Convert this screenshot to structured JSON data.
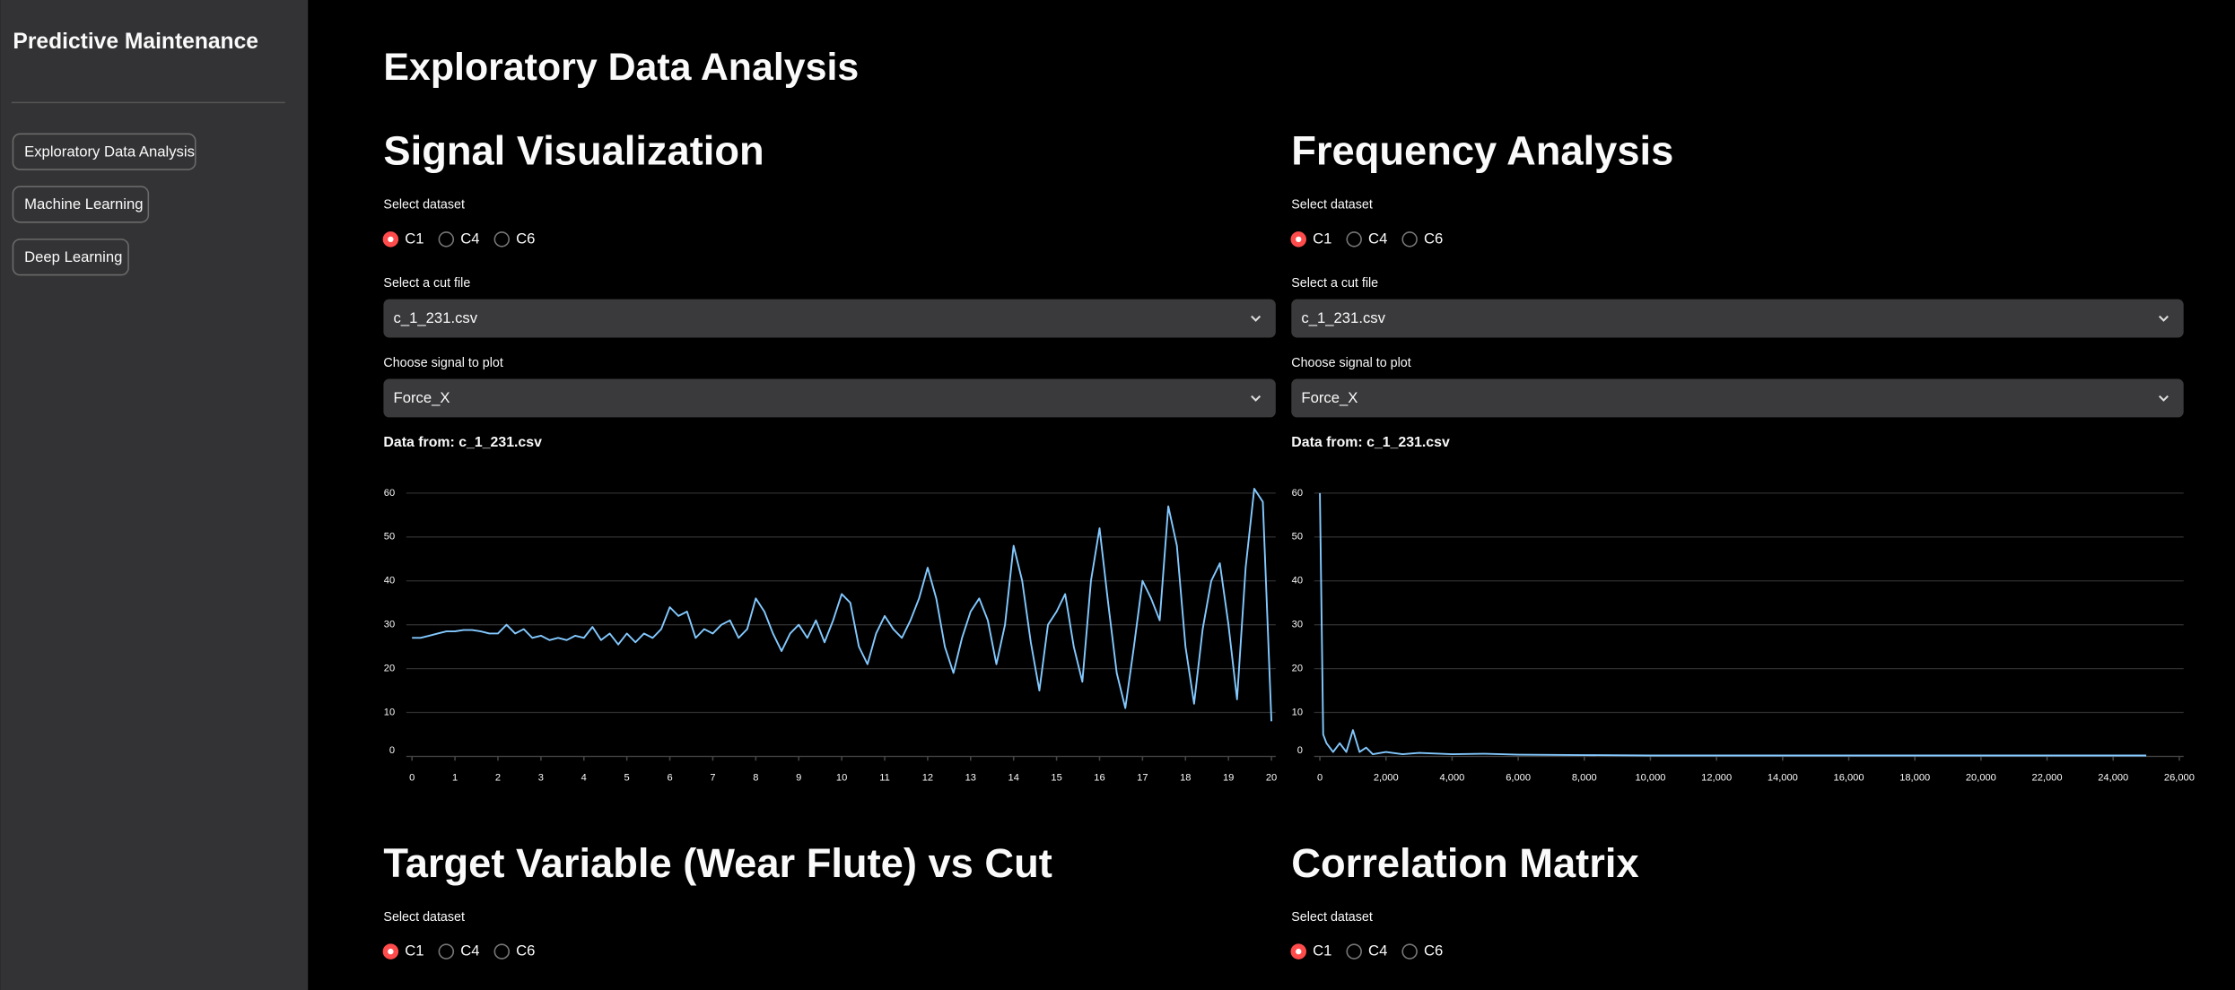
{
  "sidebar": {
    "title": "Predictive Maintenance",
    "nav": [
      "Exploratory Data Analysis",
      "Machine Learning",
      "Deep Learning"
    ]
  },
  "header": {
    "title": "Exploratory Data Analysis"
  },
  "sections": [
    {
      "title": "Signal Visualization",
      "dataset_label": "Select dataset",
      "options": [
        "C1",
        "C4",
        "C6"
      ],
      "selected": 0,
      "cut_label": "Select a cut file",
      "cut_value": "c_1_231.csv",
      "signal_label": "Choose signal to plot",
      "signal_value": "Force_X",
      "data_from": "Data from: c_1_231.csv",
      "chart": {
        "type": "line",
        "color": "#83c9ff",
        "grid": true,
        "xlim": [
          0,
          20
        ],
        "ylim": [
          0,
          62
        ],
        "xticks": [
          0,
          1,
          2,
          3,
          4,
          5,
          6,
          7,
          8,
          9,
          10,
          11,
          12,
          13,
          14,
          15,
          16,
          17,
          18,
          19,
          20
        ],
        "yticks": [
          0,
          10,
          20,
          30,
          40,
          50,
          60
        ],
        "x": [
          0,
          0.2,
          0.4,
          0.6,
          0.8,
          1,
          1.2,
          1.4,
          1.6,
          1.8,
          2,
          2.2,
          2.4,
          2.6,
          2.8,
          3,
          3.2,
          3.4,
          3.6,
          3.8,
          4,
          4.2,
          4.4,
          4.6,
          4.8,
          5,
          5.2,
          5.4,
          5.6,
          5.8,
          6,
          6.2,
          6.4,
          6.6,
          6.8,
          7,
          7.2,
          7.4,
          7.6,
          7.8,
          8,
          8.2,
          8.4,
          8.6,
          8.8,
          9,
          9.2,
          9.4,
          9.6,
          9.8,
          10,
          10.2,
          10.4,
          10.6,
          10.8,
          11,
          11.2,
          11.4,
          11.6,
          11.8,
          12,
          12.2,
          12.4,
          12.6,
          12.8,
          13,
          13.2,
          13.4,
          13.6,
          13.8,
          14,
          14.2,
          14.4,
          14.6,
          14.8,
          15,
          15.2,
          15.4,
          15.6,
          15.8,
          16,
          16.2,
          16.4,
          16.6,
          16.8,
          17,
          17.2,
          17.4,
          17.6,
          17.8,
          18,
          18.2,
          18.4,
          18.6,
          18.8,
          19,
          19.2,
          19.4,
          19.6,
          19.8,
          20
        ],
        "values": [
          27,
          27,
          27.5,
          28,
          28.5,
          28.5,
          28.8,
          28.8,
          28.5,
          28,
          28,
          30,
          28,
          29,
          27,
          27.5,
          26.5,
          27,
          26.5,
          27.5,
          27,
          29.5,
          26.5,
          28,
          25.5,
          28,
          26,
          28,
          27,
          29,
          34,
          32,
          33,
          27,
          29,
          28,
          30,
          31,
          27,
          29,
          36,
          33,
          28,
          24,
          28,
          30,
          27,
          31,
          26,
          31,
          37,
          35,
          25,
          21,
          28,
          32,
          29,
          27,
          31,
          36,
          43,
          36,
          25,
          19,
          27,
          33,
          36,
          31,
          21,
          30,
          48,
          40,
          26,
          15,
          30,
          33,
          37,
          25,
          17,
          40,
          52,
          35,
          19,
          11,
          25,
          40,
          36,
          31,
          57,
          48,
          25,
          12,
          29,
          40,
          44,
          30,
          13,
          43,
          61,
          58,
          8
        ]
      }
    },
    {
      "title": "Frequency Analysis",
      "dataset_label": "Select dataset",
      "options": [
        "C1",
        "C4",
        "C6"
      ],
      "selected": 0,
      "cut_label": "Select a cut file",
      "cut_value": "c_1_231.csv",
      "signal_label": "Choose signal to plot",
      "signal_value": "Force_X",
      "data_from": "Data from: c_1_231.csv",
      "chart": {
        "type": "line",
        "color": "#83c9ff",
        "grid": true,
        "xlim": [
          0,
          26000
        ],
        "ylim": [
          0,
          62
        ],
        "xticks": [
          0,
          {
            "value": 2000,
            "label": "2,000"
          },
          {
            "value": 4000,
            "label": "4,000"
          },
          {
            "value": 6000,
            "label": "6,000"
          },
          {
            "value": 8000,
            "label": "8,000"
          },
          {
            "value": 10000,
            "label": "10,000"
          },
          {
            "value": 12000,
            "label": "12,000"
          },
          {
            "value": 14000,
            "label": "14,000"
          },
          {
            "value": 16000,
            "label": "16,000"
          },
          {
            "value": 18000,
            "label": "18,000"
          },
          {
            "value": 20000,
            "label": "20,000"
          },
          {
            "value": 22000,
            "label": "22,000"
          },
          {
            "value": 24000,
            "label": "24,000"
          },
          {
            "value": 26000,
            "label": "26,000"
          }
        ],
        "yticks": [
          0,
          10,
          20,
          30,
          40,
          50,
          60
        ],
        "x": [
          0,
          100,
          200,
          400,
          600,
          800,
          1000,
          1200,
          1400,
          1600,
          2000,
          2500,
          3000,
          4000,
          5000,
          6000,
          8000,
          10000,
          15000,
          20000,
          25000
        ],
        "values": [
          60,
          5,
          3,
          1,
          3,
          1,
          6,
          1,
          2,
          0.5,
          1,
          0.5,
          0.8,
          0.5,
          0.6,
          0.4,
          0.3,
          0.2,
          0.2,
          0.2,
          0.2
        ]
      }
    },
    {
      "title": "Target Variable (Wear Flute) vs Cut",
      "dataset_label": "Select dataset",
      "options": [
        "C1",
        "C4",
        "C6"
      ],
      "selected": 0
    },
    {
      "title": "Correlation Matrix",
      "dataset_label": "Select dataset",
      "options": [
        "C1",
        "C4",
        "C6"
      ],
      "selected": 0
    }
  ]
}
